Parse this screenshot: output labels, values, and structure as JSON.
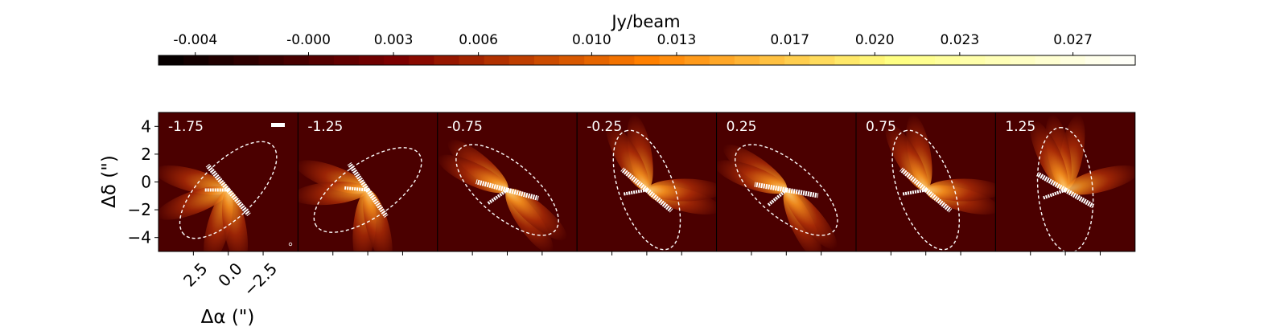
{
  "chart_data": {
    "type": "heatmap",
    "title": "",
    "colorbar": {
      "label": "Jy/beam",
      "min": -0.0053,
      "max": 0.0292,
      "n_levels": 39,
      "ticks": [
        {
          "value": -0.004,
          "label": "-0.004"
        },
        {
          "value": -0.0,
          "label": "-0.000"
        },
        {
          "value": 0.003,
          "label": "0.003"
        },
        {
          "value": 0.006,
          "label": "0.006"
        },
        {
          "value": 0.01,
          "label": "0.010"
        },
        {
          "value": 0.013,
          "label": "0.013"
        },
        {
          "value": 0.017,
          "label": "0.017"
        },
        {
          "value": 0.02,
          "label": "0.020"
        },
        {
          "value": 0.023,
          "label": "0.023"
        },
        {
          "value": 0.027,
          "label": "0.027"
        }
      ],
      "colormap": "afmhot"
    },
    "xlabel": "Δα (\")",
    "ylabel": "Δδ (\")",
    "xlim": [
      5,
      -5
    ],
    "ylim": [
      -5,
      5
    ],
    "x_ticks": [
      {
        "value": 2.5,
        "label": "2.5"
      },
      {
        "value": 0.0,
        "label": "0.0"
      },
      {
        "value": -2.5,
        "label": "−2.5"
      }
    ],
    "y_ticks": [
      {
        "value": 4,
        "label": "4"
      },
      {
        "value": 2,
        "label": "2"
      },
      {
        "value": 0,
        "label": "0"
      },
      {
        "value": -2,
        "label": "−2"
      },
      {
        "value": -4,
        "label": "−4"
      }
    ],
    "background_color": "#4b0000",
    "contour_color": "#ffffff",
    "panels": [
      {
        "label": "-1.75",
        "lobes": [
          165,
          200,
          255,
          280
        ],
        "white_arm": 130,
        "contour_angle": 225
      },
      {
        "label": "-1.25",
        "lobes": [
          160,
          185,
          265,
          285
        ],
        "white_arm": 125,
        "contour_angle": 215
      },
      {
        "label": "-0.75",
        "lobes": [
          140,
          155,
          305,
          320
        ],
        "white_arm": 165,
        "contour_angle": 140
      },
      {
        "label": "-0.25",
        "lobes": [
          100,
          120,
          345,
          0
        ],
        "white_arm": 140,
        "contour_angle": 110
      },
      {
        "label": "0.25",
        "lobes": [
          145,
          160,
          295,
          310
        ],
        "white_arm": 170,
        "contour_angle": 140
      },
      {
        "label": "0.75",
        "lobes": [
          100,
          120,
          345,
          0
        ],
        "white_arm": 140,
        "contour_angle": 110
      },
      {
        "label": "1.25",
        "lobes": [
          80,
          100,
          115,
          15
        ],
        "white_arm": 150,
        "contour_angle": 95
      }
    ]
  }
}
